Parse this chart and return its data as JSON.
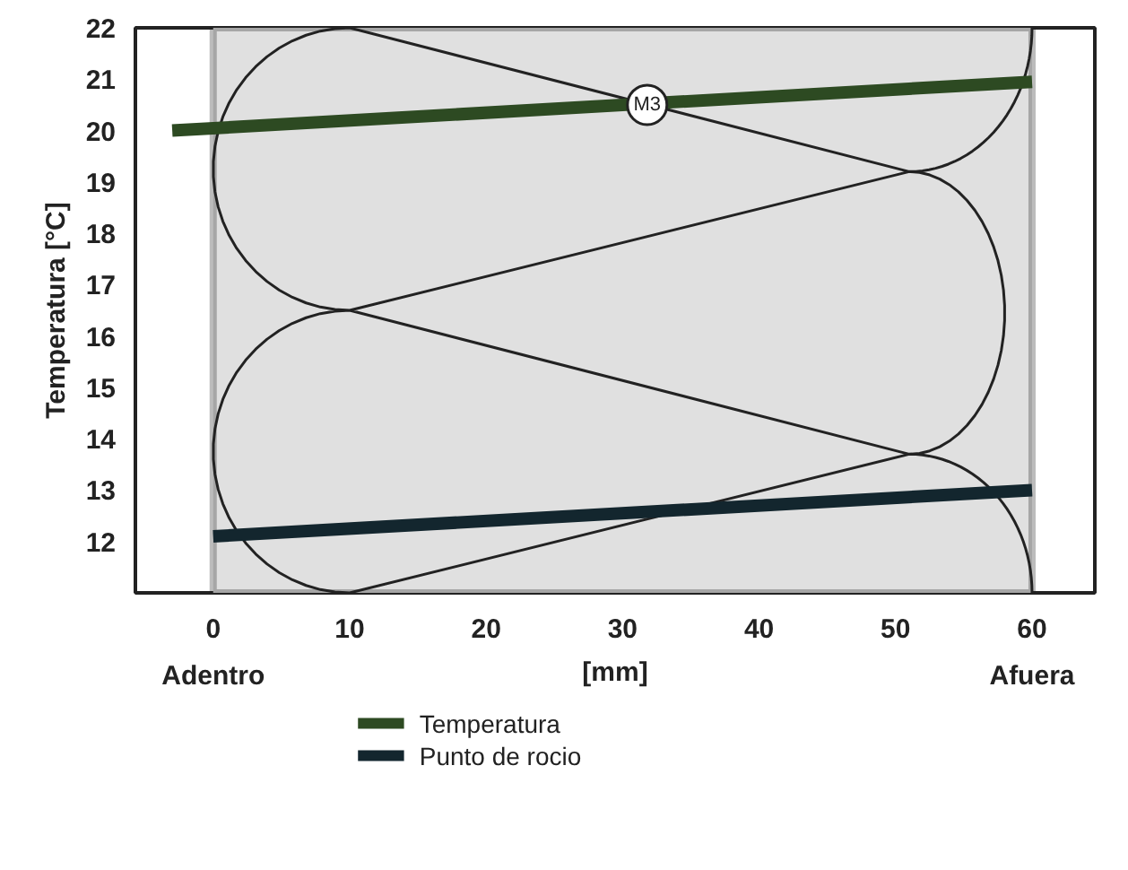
{
  "chart_data": {
    "type": "line",
    "ylabel": "Temperatura [°C]",
    "xlabel": "[mm]",
    "xlim": [
      -5.7,
      64.6
    ],
    "ylim": [
      11,
      22
    ],
    "xticks": [
      0,
      10,
      20,
      30,
      40,
      50,
      60
    ],
    "yticks": [
      12,
      13,
      14,
      15,
      16,
      17,
      18,
      19,
      20,
      21,
      22
    ],
    "series": [
      {
        "name": "Temperatura",
        "color": "#2d4a22",
        "x": [
          -3,
          60
        ],
        "values": [
          20.0,
          20.95
        ]
      },
      {
        "name": "Punto de rocio",
        "color": "#13262e",
        "x": [
          0,
          60
        ],
        "values": [
          12.1,
          13.0
        ]
      }
    ],
    "bands": [
      {
        "axis": "x",
        "from": 0,
        "to": 60,
        "color": "#e0e0e0"
      }
    ],
    "annotations": [
      {
        "text": "M3",
        "x": 31.8,
        "y": 20.5
      },
      "Adentro",
      "Afuera"
    ],
    "grid": false,
    "legend": "bottom",
    "marker": "none",
    "line_style": "solid"
  }
}
